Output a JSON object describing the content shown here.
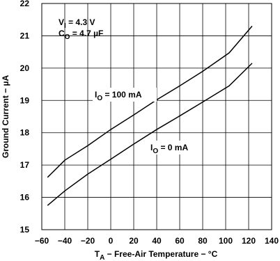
{
  "chart_data": {
    "type": "line",
    "xlabel": {
      "main": "T",
      "sub": "A",
      "suffix": " − Free-Air Temperature − °C"
    },
    "ylabel": "Ground Current − µA",
    "x": [
      -55,
      -40,
      -20,
      0,
      20,
      40,
      60,
      80,
      103,
      123
    ],
    "series": [
      {
        "color": "#000000",
        "values": [
          16.62,
          17.15,
          17.6,
          18.1,
          18.55,
          19.02,
          19.45,
          19.9,
          20.47,
          21.3
        ],
        "label": {
          "main": "I",
          "sub": "O",
          "suffix": " = 100 mA"
        }
      },
      {
        "color": "#000000",
        "values": [
          15.75,
          16.2,
          16.72,
          17.18,
          17.65,
          18.1,
          18.52,
          18.95,
          19.45,
          20.15
        ],
        "label": {
          "main": "I",
          "sub": "O",
          "suffix": " = 0 mA"
        }
      }
    ],
    "annotations": [
      {
        "main": "V",
        "sub": "I",
        "suffix": " = 4.3 V"
      },
      {
        "main": "C",
        "sub": "O",
        "suffix": " = 4.7 µF"
      }
    ],
    "xlim": [
      -60,
      140
    ],
    "xticks": [
      {
        "value": -60,
        "label": "−60"
      },
      {
        "value": -40,
        "label": "−40"
      },
      {
        "value": -20,
        "label": "−20"
      },
      0,
      20,
      40,
      60,
      80,
      100,
      120,
      140
    ],
    "ylim": [
      15,
      22
    ],
    "yticks": [
      15,
      16,
      17,
      18,
      19,
      20,
      21,
      22
    ],
    "grid": true
  }
}
